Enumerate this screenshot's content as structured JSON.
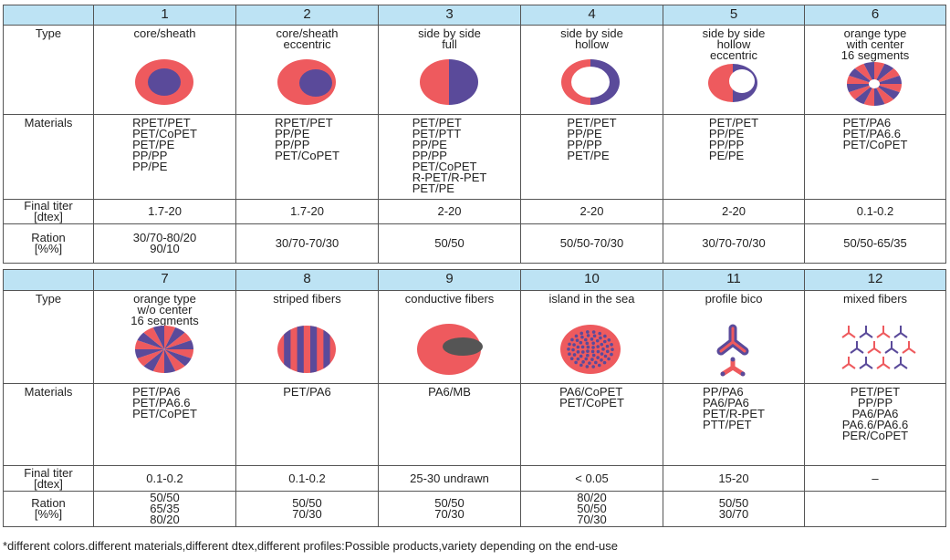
{
  "tables": [
    {
      "columns": [
        "1",
        "2",
        "3",
        "4",
        "5",
        "6"
      ],
      "rows": [
        {
          "label": "Type",
          "cells": [
            "core/sheath",
            "core/sheath\neccentric",
            "side by side\nfull",
            "side by side\nhollow",
            "side by side\nhollow\neccentric",
            "orange type\nwith center\n16 segments"
          ]
        },
        {
          "label": "Materials",
          "cells": [
            "RPET/PET\nPET/CoPET\nPET/PE\nPP/PP\nPP/PE",
            "RPET/PET\nPP/PE\nPP/PP\nPET/CoPET",
            "PET/PET\nPET/PTT\nPP/PE\nPP/PP\nPET/CoPET\nR-PET/R-PET\nPET/PE",
            "PET/PET\nPP/PE\nPP/PP\nPET/PE",
            "PET/PET\nPP/PE\nPP/PP\nPE/PE",
            "PET/PA6\nPET/PA6.6\nPET/CoPET"
          ]
        },
        {
          "label": "Final titer\n[dtex]",
          "cells": [
            "1.7-20",
            "1.7-20",
            "2-20",
            "2-20",
            "2-20",
            "0.1-0.2"
          ]
        },
        {
          "label": "Ration\n[%%]",
          "cells": [
            "30/70-80/20\n90/10",
            "30/70-70/30",
            "50/50",
            "50/50-70/30",
            "30/70-70/30",
            "50/50-65/35"
          ]
        }
      ]
    },
    {
      "columns": [
        "7",
        "8",
        "9",
        "10",
        "11",
        "12"
      ],
      "rows": [
        {
          "label": "Type",
          "cells": [
            "orange type\nw/o center\n16 segments",
            "striped fibers",
            "conductive fibers",
            "island in the sea",
            "profile bico",
            "mixed fibers"
          ]
        },
        {
          "label": "Materials",
          "cells": [
            "PET/PA6\nPET/PA6.6\nPET/CoPET",
            "PET/PA6",
            "PA6/MB",
            "PA6/CoPET\nPET/CoPET",
            "PP/PA6\nPA6/PA6\nPET/R-PET\nPTT/PET",
            "PET/PET\nPP/PP\nPA6/PA6\nPA6.6/PA6.6\nPER/CoPET"
          ]
        },
        {
          "label": "Final titer\n[dtex]",
          "cells": [
            "0.1-0.2",
            "0.1-0.2",
            "25-30 undrawn",
            "< 0.05",
            "15-20",
            "–"
          ]
        },
        {
          "label": "Ration\n[%%]",
          "cells": [
            "50/50\n65/35\n80/20",
            "50/50\n70/30",
            "50/50\n70/30",
            "80/20\n50/50\n70/30",
            "50/50\n30/70",
            null
          ]
        }
      ]
    }
  ],
  "footnote": "*different colors.different materials,different dtex,different profiles:Possible products,variety depending on the end-use"
}
